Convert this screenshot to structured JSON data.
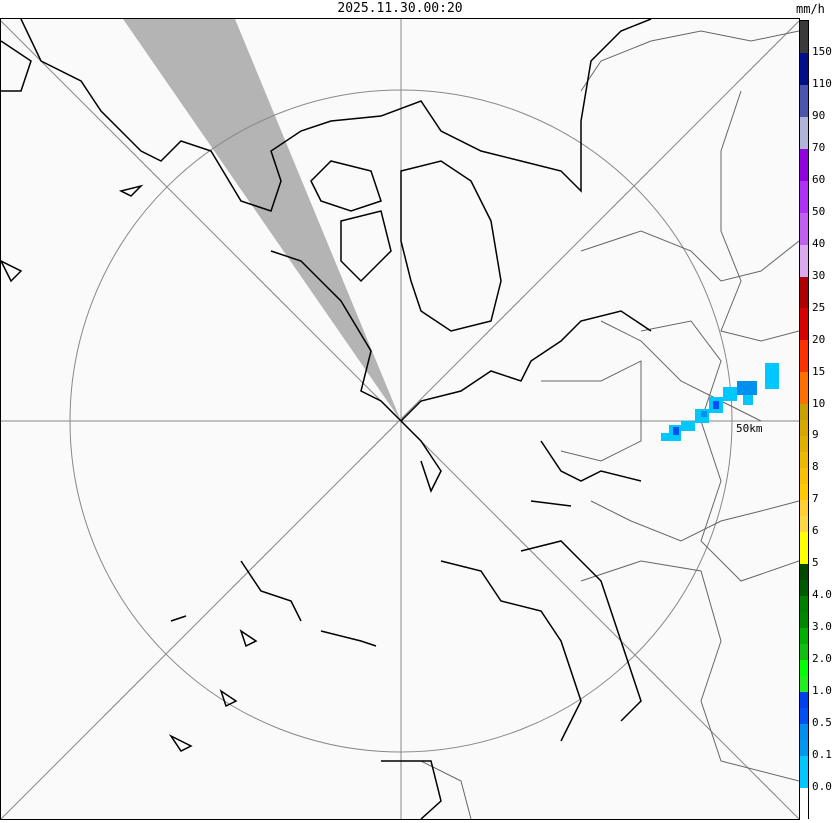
{
  "timestamp": "2025.11.30.00:20",
  "unit": "mm/h",
  "range_label": "50km",
  "legend": {
    "labels": [
      "150",
      "110",
      "90",
      "70",
      "60",
      "50",
      "40",
      "30",
      "25",
      "20",
      "15",
      "10",
      "9",
      "8",
      "7",
      "6",
      "5",
      "4.0",
      "3.0",
      "2.0",
      "1.0",
      "0.5",
      "0.1",
      "0.0"
    ],
    "colors": [
      "#3a3a3a",
      "#3a3a3a",
      "#000f8c",
      "#000f8c",
      "#4a55b0",
      "#4a55b0",
      "#b0b4d8",
      "#b0b4d8",
      "#9000e0",
      "#9000e0",
      "#b030f8",
      "#b030f8",
      "#c060f0",
      "#c060f0",
      "#dca8f0",
      "#dca8f0",
      "#b00000",
      "#b00000",
      "#d80000",
      "#d80000",
      "#ff3000",
      "#ff3000",
      "#ff7000",
      "#ff7000",
      "#c8a000",
      "#d4a800",
      "#e0b000",
      "#ecb800",
      "#f8c000",
      "#ffc800",
      "#ffd030",
      "#ffd840",
      "#ffff00",
      "#ffff00",
      "#004a00",
      "#005a00",
      "#008000",
      "#008800",
      "#00b000",
      "#10c010",
      "#00ff00",
      "#20f020",
      "#0040f0",
      "#0050f8",
      "#0090f0",
      "#0098f0",
      "#00c8ff",
      "#00c8ff",
      "#ffffff",
      "#ffffff"
    ]
  },
  "colors": {
    "rain_light": "#00c8ff",
    "rain_mid": "#0090f0",
    "rain_heavy": "#0050f8",
    "blind_sector": "#b4b4b4"
  }
}
